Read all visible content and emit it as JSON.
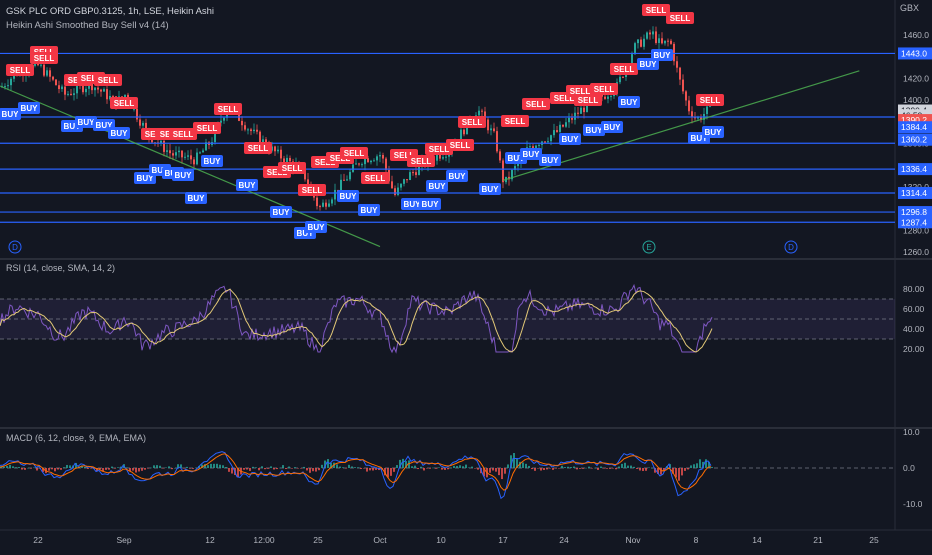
{
  "header": {
    "title": "GSK PLC ORD GBP0.3125, 1h, LSE, Heikin Ashi",
    "indicator": "Heikin Ashi Smoothed Buy Sell v4",
    "indicator_param": "(14)"
  },
  "price_axis": {
    "currency": "GBX",
    "ticks": [
      "1460.0",
      "1420.0",
      "1400.0",
      "1360.0",
      "1320.0",
      "1280.0",
      "1260.0"
    ],
    "labels": [
      {
        "text": "1443.0",
        "value": 1443.0,
        "kind": "level"
      },
      {
        "text": "1390.4",
        "value": 1390.4,
        "kind": "last"
      },
      {
        "text": "46:50",
        "value": 1386.0,
        "kind": "timer"
      },
      {
        "text": "1390.2",
        "value": 1381.6,
        "kind": "red"
      },
      {
        "text": "1384.4",
        "value": 1375.0,
        "kind": "level"
      },
      {
        "text": "1360.2",
        "value": 1363.5,
        "kind": "level"
      },
      {
        "text": "1336.4",
        "value": 1336.4,
        "kind": "level"
      },
      {
        "text": "1314.4",
        "value": 1314.4,
        "kind": "level"
      },
      {
        "text": "1296.8",
        "value": 1296.8,
        "kind": "level"
      },
      {
        "text": "1287.4",
        "value": 1287.4,
        "kind": "level"
      }
    ]
  },
  "time_axis": [
    "22",
    "Sep",
    "12",
    "12:00",
    "25",
    "Oct",
    "10",
    "17",
    "24",
    "Nov",
    "8",
    "14",
    "21",
    "25"
  ],
  "event_markers": [
    "D",
    "E",
    "D"
  ],
  "rsi": {
    "title": "RSI (14, close, SMA, 14, 2)",
    "ticks": [
      "80.00",
      "60.00",
      "40.00",
      "20.00"
    ]
  },
  "macd": {
    "title": "MACD (6, 12, close, 9, EMA, EMA)",
    "ticks": [
      "10.0",
      "0.0",
      "-10.0"
    ]
  },
  "signals": {
    "sell": "SELL",
    "buy": "BUY"
  },
  "colors": {
    "background": "#131722",
    "up": "#26a69a",
    "down": "#ef5350",
    "level_line": "#2962ff",
    "trendline": "#4caf50",
    "rsi": "#7e57c2",
    "rsi_ma": "#e2c877",
    "macd": "#2962ff",
    "signal_line": "#ff6d00",
    "sell_label": "#f23645",
    "buy_label": "#2962ff"
  },
  "chart_data": {
    "type": "candlestick",
    "x_range": [
      "Aug 17",
      "Nov 27"
    ],
    "y_unit": "GBX",
    "ylim": [
      1258,
      1472
    ],
    "horizontal_levels": [
      1443.0,
      1384.4,
      1360.2,
      1336.4,
      1314.4,
      1296.8,
      1287.4
    ],
    "trendlines": [
      {
        "from": [
          "Aug 17",
          1413
        ],
        "to": [
          "Oct 1",
          1265
        ]
      },
      {
        "from": [
          "Oct 17",
          1326
        ],
        "to": [
          "Nov 25",
          1427
        ]
      }
    ],
    "close_path": [
      {
        "x": "Aug 17",
        "y": 1412
      },
      {
        "x": "Aug 19",
        "y": 1425
      },
      {
        "x": "Aug 22",
        "y": 1432
      },
      {
        "x": "Aug 25",
        "y": 1405
      },
      {
        "x": "Aug 28",
        "y": 1415
      },
      {
        "x": "Aug 31",
        "y": 1398
      },
      {
        "x": "Sep 1",
        "y": 1405
      },
      {
        "x": "Sep 4",
        "y": 1368
      },
      {
        "x": "Sep 7",
        "y": 1350
      },
      {
        "x": "Sep 10",
        "y": 1345
      },
      {
        "x": "Sep 12",
        "y": 1362
      },
      {
        "x": "Sep 14",
        "y": 1395
      },
      {
        "x": "Sep 17",
        "y": 1370
      },
      {
        "x": "Sep 20",
        "y": 1350
      },
      {
        "x": "Sep 23",
        "y": 1335
      },
      {
        "x": "Sep 25",
        "y": 1300
      },
      {
        "x": "Sep 27",
        "y": 1320
      },
      {
        "x": "Sep 29",
        "y": 1345
      },
      {
        "x": "Oct 1",
        "y": 1350
      },
      {
        "x": "Oct 3",
        "y": 1312
      },
      {
        "x": "Oct 5",
        "y": 1330
      },
      {
        "x": "Oct 8",
        "y": 1345
      },
      {
        "x": "Oct 11",
        "y": 1355
      },
      {
        "x": "Oct 14",
        "y": 1392
      },
      {
        "x": "Oct 16",
        "y": 1365
      },
      {
        "x": "Oct 17",
        "y": 1322
      },
      {
        "x": "Oct 20",
        "y": 1358
      },
      {
        "x": "Oct 23",
        "y": 1370
      },
      {
        "x": "Oct 26",
        "y": 1392
      },
      {
        "x": "Oct 28",
        "y": 1402
      },
      {
        "x": "Oct 30",
        "y": 1412
      },
      {
        "x": "Nov 1",
        "y": 1448
      },
      {
        "x": "Nov 3",
        "y": 1462
      },
      {
        "x": "Nov 4",
        "y": 1450
      },
      {
        "x": "Nov 5",
        "y": 1455
      },
      {
        "x": "Nov 6",
        "y": 1420
      },
      {
        "x": "Nov 7",
        "y": 1393
      },
      {
        "x": "Nov 8",
        "y": 1382
      },
      {
        "x": "Nov 9",
        "y": 1390
      }
    ],
    "rsi": {
      "ylim": [
        13,
        93
      ],
      "bands": [
        70,
        50,
        30
      ],
      "last": 38
    },
    "macd": {
      "ylim": [
        -14,
        12
      ],
      "last": -3
    }
  }
}
